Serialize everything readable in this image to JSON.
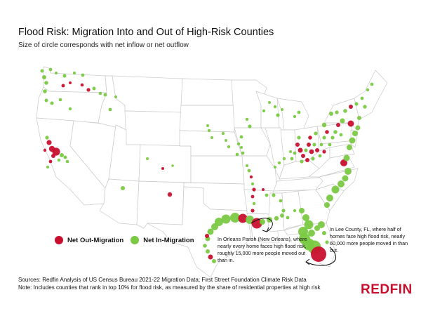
{
  "header": {
    "title": "Flood Risk: Migration Into and Out of High-Risk Counties",
    "subtitle": "Size of circle corresponds with net inflow or net outflow"
  },
  "legend": {
    "out_label": "Net Out-Migration",
    "in_label": "Net In-Migration"
  },
  "colors": {
    "out_migration": "#c8102e",
    "in_migration": "#7ac943",
    "map_fill": "#ffffff",
    "map_border": "#c9c9c9",
    "brand": "#c8102e"
  },
  "annotations": {
    "new_orleans": "In Orleans Parish (New Orleans), where nearly every home faces high flood risk, roughly 15,000 more people moved out than in.",
    "lee_county": "In Lee County, FL, where half of homes face high flood risk, nearly 60,000 more people moved in than out."
  },
  "footer": {
    "sources": "Sources: Redfin Analysis of US Census Bureau 2021-22 Migration Data; First Street Foundation Climate Risk Data",
    "note": "Note: Includes counties that rank in top 10% for flood risk, as measured by the share of residential properties at high risk"
  },
  "brand": {
    "logo_text": "REDFIN"
  }
}
